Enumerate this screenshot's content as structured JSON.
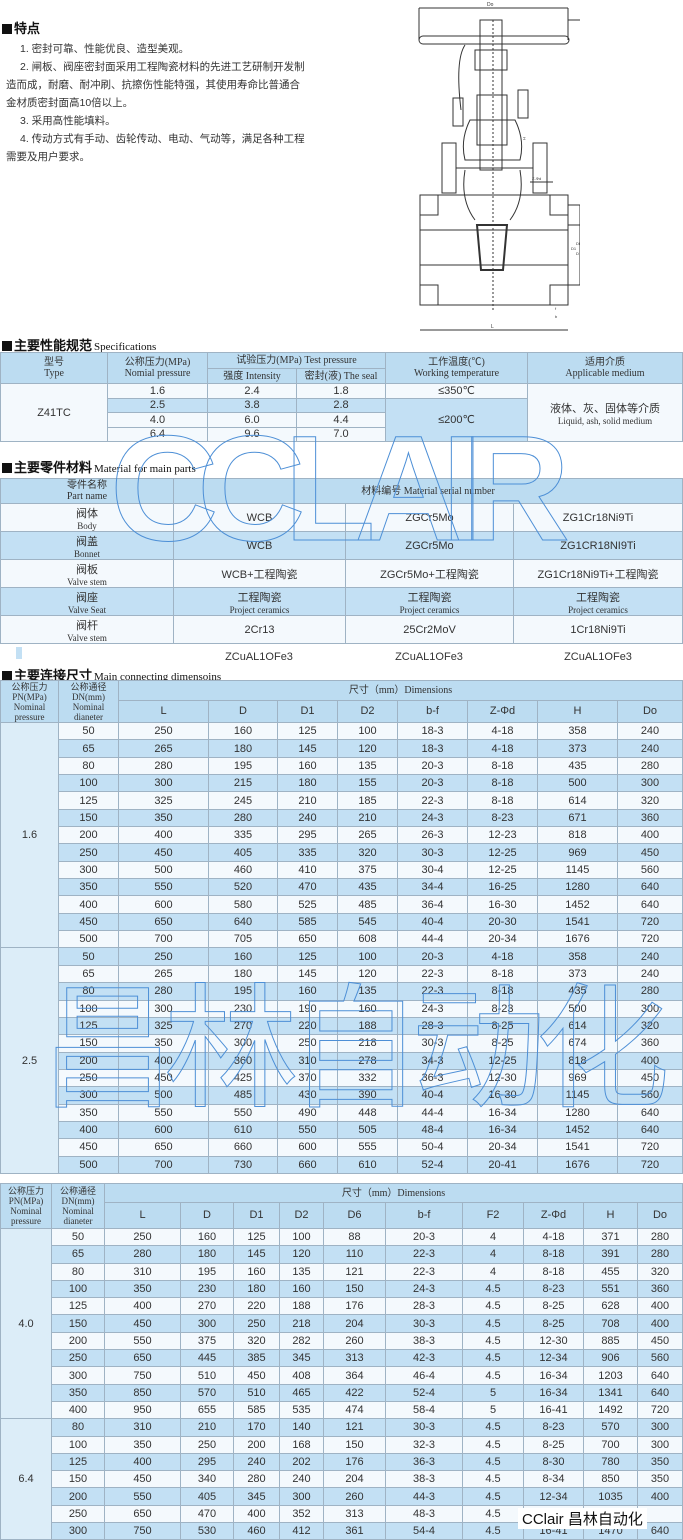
{
  "features": {
    "title": "特点",
    "items": [
      "1. 密封可靠、性能优良、造型美观。",
      "2. 闸板、阀座密封面采用工程陶瓷材料的先进工艺研制开发制造而成，耐磨、耐冲刷、抗擦伤性能特强，其使用寿命比普通合金材质密封面高10倍以上。",
      "3. 采用高性能填料。",
      "4. 传动方式有手动、齿轮传动、电动、气动等，满足各种工程需要及用户要求。"
    ]
  },
  "drawing": {
    "labels": [
      "Do",
      "H",
      "Z-Φd",
      "DN",
      "D1",
      "D",
      "f",
      "b",
      "L"
    ]
  },
  "specs": {
    "title_cn": "主要性能规范",
    "title_en": "Specifications",
    "h_type_cn": "型号",
    "h_type_en": "Type",
    "h_np_cn": "公称压力(MPa)",
    "h_np_en": "Nomial pressure",
    "h_tp": "试验压力(MPa) Test pressure",
    "h_int": "强度 Intensity",
    "h_seal": "密封(液) The seal",
    "h_wt_cn": "工作温度(℃)",
    "h_wt_en": "Working temperature",
    "h_am_cn": "适用介质",
    "h_am_en": "Applicable medium",
    "type": "Z41TC",
    "rows": [
      [
        "1.6",
        "2.4",
        "1.8"
      ],
      [
        "2.5",
        "3.8",
        "2.8"
      ],
      [
        "4.0",
        "6.0",
        "4.4"
      ],
      [
        "6.4",
        "9.6",
        "7.0"
      ]
    ],
    "temp1": "≤350℃",
    "temp2": "≤200℃",
    "medium_cn": "液体、灰、固体等介质",
    "medium_en": "Liquid, ash, solid medium"
  },
  "materials": {
    "title_cn": "主要零件材料",
    "title_en": "Material for main parts",
    "h_part_cn": "零件名称",
    "h_part_en": "Part name",
    "h_serial": "材料编号  Material serial number",
    "rows": [
      {
        "cn": "阀体",
        "en": "Body",
        "v": [
          "WCB",
          "ZGCr5Mo",
          "ZG1Cr18Ni9Ti"
        ]
      },
      {
        "cn": "阀盖",
        "en": "Bonnet",
        "v": [
          "WCB",
          "ZGCr5Mo",
          "ZG1CR18NI9Ti"
        ]
      },
      {
        "cn": "阀板",
        "en": "Valve stem",
        "v": [
          "WCB+工程陶瓷",
          "ZGCr5Mo+工程陶瓷",
          "ZG1Cr18Ni9Ti+工程陶瓷"
        ]
      },
      {
        "cn": "阀座",
        "en": "Valve Seat",
        "v": [
          "工程陶瓷 Project ceramics",
          "工程陶瓷 Project ceramics",
          "工程陶瓷 Project ceramics"
        ]
      },
      {
        "cn": "阀杆",
        "en": "Valve stem",
        "v": [
          "2Cr13",
          "25Cr2MoV",
          "1Cr18Ni9Ti"
        ]
      }
    ],
    "extra": [
      "ZCuAL1OFe3",
      "ZCuAL1OFe3",
      "ZCuAL1OFe3"
    ]
  },
  "dimensions": {
    "title_cn": "主要连接尺寸",
    "title_en": "Main connecting dimensoins",
    "h_pn": [
      "公称压力",
      "PN(MPa)",
      "Nominal",
      "pressure"
    ],
    "h_dn": [
      "公称通径",
      "DN(mm)",
      "Nominal",
      "dianeter"
    ],
    "h_dim": "尺寸（mm）Dimensions",
    "table1": {
      "cols": [
        "L",
        "D",
        "D1",
        "D2",
        "b-f",
        "Z-Φd",
        "H",
        "Do"
      ],
      "groups": [
        {
          "pn": "1.6",
          "rows": [
            [
              "50",
              "250",
              "160",
              "125",
              "100",
              "18-3",
              "4-18",
              "358",
              "240"
            ],
            [
              "65",
              "265",
              "180",
              "145",
              "120",
              "18-3",
              "4-18",
              "373",
              "240"
            ],
            [
              "80",
              "280",
              "195",
              "160",
              "135",
              "20-3",
              "8-18",
              "435",
              "280"
            ],
            [
              "100",
              "300",
              "215",
              "180",
              "155",
              "20-3",
              "8-18",
              "500",
              "300"
            ],
            [
              "125",
              "325",
              "245",
              "210",
              "185",
              "22-3",
              "8-18",
              "614",
              "320"
            ],
            [
              "150",
              "350",
              "280",
              "240",
              "210",
              "24-3",
              "8-23",
              "671",
              "360"
            ],
            [
              "200",
              "400",
              "335",
              "295",
              "265",
              "26-3",
              "12-23",
              "818",
              "400"
            ],
            [
              "250",
              "450",
              "405",
              "335",
              "320",
              "30-3",
              "12-25",
              "969",
              "450"
            ],
            [
              "300",
              "500",
              "460",
              "410",
              "375",
              "30-4",
              "12-25",
              "1145",
              "560"
            ],
            [
              "350",
              "550",
              "520",
              "470",
              "435",
              "34-4",
              "16-25",
              "1280",
              "640"
            ],
            [
              "400",
              "600",
              "580",
              "525",
              "485",
              "36-4",
              "16-30",
              "1452",
              "640"
            ],
            [
              "450",
              "650",
              "640",
              "585",
              "545",
              "40-4",
              "20-30",
              "1541",
              "720"
            ],
            [
              "500",
              "700",
              "705",
              "650",
              "608",
              "44-4",
              "20-34",
              "1676",
              "720"
            ]
          ]
        },
        {
          "pn": "2.5",
          "rows": [
            [
              "50",
              "250",
              "160",
              "125",
              "100",
              "20-3",
              "4-18",
              "358",
              "240"
            ],
            [
              "65",
              "265",
              "180",
              "145",
              "120",
              "22-3",
              "8-18",
              "373",
              "240"
            ],
            [
              "80",
              "280",
              "195",
              "160",
              "135",
              "22-3",
              "8-18",
              "435",
              "280"
            ],
            [
              "100",
              "300",
              "230",
              "190",
              "160",
              "24-3",
              "8-23",
              "500",
              "300"
            ],
            [
              "125",
              "325",
              "270",
              "220",
              "188",
              "28-3",
              "8-25",
              "614",
              "320"
            ],
            [
              "150",
              "350",
              "300",
              "250",
              "218",
              "30-3",
              "8-25",
              "674",
              "360"
            ],
            [
              "200",
              "400",
              "360",
              "310",
              "278",
              "34-3",
              "12-25",
              "818",
              "400"
            ],
            [
              "250",
              "450",
              "425",
              "370",
              "332",
              "36-3",
              "12-30",
              "969",
              "450"
            ],
            [
              "300",
              "500",
              "485",
              "430",
              "390",
              "40-4",
              "16-30",
              "1145",
              "560"
            ],
            [
              "350",
              "550",
              "550",
              "490",
              "448",
              "44-4",
              "16-34",
              "1280",
              "640"
            ],
            [
              "400",
              "600",
              "610",
              "550",
              "505",
              "48-4",
              "16-34",
              "1452",
              "640"
            ],
            [
              "450",
              "650",
              "660",
              "600",
              "555",
              "50-4",
              "20-34",
              "1541",
              "720"
            ],
            [
              "500",
              "700",
              "730",
              "660",
              "610",
              "52-4",
              "20-41",
              "1676",
              "720"
            ]
          ]
        }
      ]
    },
    "table2": {
      "cols": [
        "L",
        "D",
        "D1",
        "D2",
        "D6",
        "b-f",
        "F2",
        "Z-Φd",
        "H",
        "Do"
      ],
      "groups": [
        {
          "pn": "4.0",
          "rows": [
            [
              "50",
              "250",
              "160",
              "125",
              "100",
              "88",
              "20-3",
              "4",
              "4-18",
              "371",
              "280"
            ],
            [
              "65",
              "280",
              "180",
              "145",
              "120",
              "110",
              "22-3",
              "4",
              "8-18",
              "391",
              "280"
            ],
            [
              "80",
              "310",
              "195",
              "160",
              "135",
              "121",
              "22-3",
              "4",
              "8-18",
              "455",
              "320"
            ],
            [
              "100",
              "350",
              "230",
              "180",
              "160",
              "150",
              "24-3",
              "4.5",
              "8-23",
              "551",
              "360"
            ],
            [
              "125",
              "400",
              "270",
              "220",
              "188",
              "176",
              "28-3",
              "4.5",
              "8-25",
              "628",
              "400"
            ],
            [
              "150",
              "450",
              "300",
              "250",
              "218",
              "204",
              "30-3",
              "4.5",
              "8-25",
              "708",
              "400"
            ],
            [
              "200",
              "550",
              "375",
              "320",
              "282",
              "260",
              "38-3",
              "4.5",
              "12-30",
              "885",
              "450"
            ],
            [
              "250",
              "650",
              "445",
              "385",
              "345",
              "313",
              "42-3",
              "4.5",
              "12-34",
              "906",
              "560"
            ],
            [
              "300",
              "750",
              "510",
              "450",
              "408",
              "364",
              "46-4",
              "4.5",
              "16-34",
              "1203",
              "640"
            ],
            [
              "350",
              "850",
              "570",
              "510",
              "465",
              "422",
              "52-4",
              "5",
              "16-34",
              "1341",
              "640"
            ],
            [
              "400",
              "950",
              "655",
              "585",
              "535",
              "474",
              "58-4",
              "5",
              "16-41",
              "1492",
              "720"
            ]
          ]
        },
        {
          "pn": "6.4",
          "rows": [
            [
              "80",
              "310",
              "210",
              "170",
              "140",
              "121",
              "30-3",
              "4.5",
              "8-23",
              "570",
              "300"
            ],
            [
              "100",
              "350",
              "250",
              "200",
              "168",
              "150",
              "32-3",
              "4.5",
              "8-25",
              "700",
              "300"
            ],
            [
              "125",
              "400",
              "295",
              "240",
              "202",
              "176",
              "36-3",
              "4.5",
              "8-30",
              "780",
              "350"
            ],
            [
              "150",
              "450",
              "340",
              "280",
              "240",
              "204",
              "38-3",
              "4.5",
              "8-34",
              "850",
              "350"
            ],
            [
              "200",
              "550",
              "405",
              "345",
              "300",
              "260",
              "44-3",
              "4.5",
              "12-34",
              "1035",
              "400"
            ],
            [
              "250",
              "650",
              "470",
              "400",
              "352",
              "313",
              "48-3",
              "4.5",
              "",
              "",
              ""
            ],
            [
              "300",
              "750",
              "530",
              "460",
              "412",
              "361",
              "54-4",
              "4.5",
              "16-41",
              "1470",
              "640"
            ]
          ]
        }
      ]
    }
  },
  "watermarks": {
    "outline_latin": "CCLAIR",
    "outline_cn": "昌林自动化",
    "brand": "CClair 昌林自动化"
  },
  "colors": {
    "header": "#bcdcf1",
    "stripe": "#c3e0f4",
    "light": "#f4f9fd",
    "border": "#9fb3c4"
  }
}
